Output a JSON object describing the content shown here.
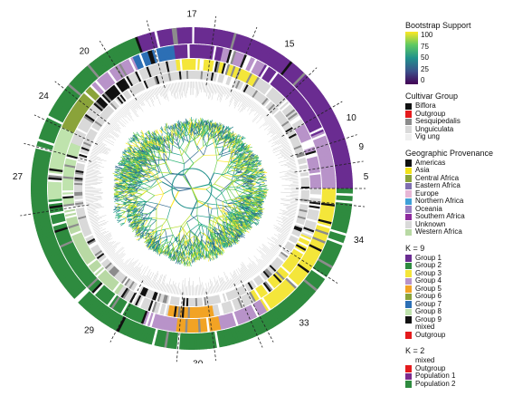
{
  "cluster_labels": [
    {
      "text": "17",
      "angle": -90
    },
    {
      "text": "15",
      "angle": -56
    },
    {
      "text": "10",
      "angle": -24
    },
    {
      "text": "9",
      "angle": -14
    },
    {
      "text": "5",
      "angle": -4
    },
    {
      "text": "34",
      "angle": 17
    },
    {
      "text": "33",
      "angle": 50
    },
    {
      "text": "30",
      "angle": 88
    },
    {
      "text": "29",
      "angle": 126
    },
    {
      "text": "27",
      "angle": 184
    },
    {
      "text": "24",
      "angle": 212
    },
    {
      "text": "20",
      "angle": 232
    }
  ],
  "legend": {
    "bootstrap": {
      "title": "Bootstrap Support",
      "ticks": [
        "100",
        "75",
        "50",
        "25",
        "0"
      ],
      "colors": [
        "#fde725",
        "#5ec962",
        "#21918c",
        "#3b528b",
        "#440154"
      ]
    },
    "cultivar": {
      "title": "Cultivar Group",
      "items": [
        {
          "label": "Biflora",
          "color": "#111111"
        },
        {
          "label": "Outgroup",
          "color": "#e41a1c"
        },
        {
          "label": "Sesquipedalis",
          "color": "#8c8c8c"
        },
        {
          "label": "Unguiculata",
          "color": "#d9d9d9"
        },
        {
          "label": "Vig ung",
          "color": "#efefef"
        }
      ]
    },
    "provenance": {
      "title": "Geographic Provenance",
      "items": [
        {
          "label": "Americas",
          "color": "#111111"
        },
        {
          "label": "Asia",
          "color": "#f2e21a"
        },
        {
          "label": "Central Africa",
          "color": "#8aa33a"
        },
        {
          "label": "Eastern Africa",
          "color": "#7f6fb0"
        },
        {
          "label": "Europe",
          "color": "#e7b7d6"
        },
        {
          "label": "Northern Africa",
          "color": "#3fa0d8"
        },
        {
          "label": "Oceania",
          "color": "#9a7fc2"
        },
        {
          "label": "Southern Africa",
          "color": "#8e2b9e"
        },
        {
          "label": "Unknown",
          "color": "#d9d9d9"
        },
        {
          "label": "Western Africa",
          "color": "#b8d9a4"
        }
      ]
    },
    "k9": {
      "title": "K = 9",
      "items": [
        {
          "label": "Group 1",
          "color": "#6a2c91"
        },
        {
          "label": "Group 2",
          "color": "#2e8b3f"
        },
        {
          "label": "Group 3",
          "color": "#f4e63a"
        },
        {
          "label": "Group 4",
          "color": "#b893c9"
        },
        {
          "label": "Group 5",
          "color": "#f2a324"
        },
        {
          "label": "Group 6",
          "color": "#8aa33a"
        },
        {
          "label": "Group 7",
          "color": "#2c6fb5"
        },
        {
          "label": "Group 8",
          "color": "#bfe3ad"
        },
        {
          "label": "Group 9",
          "color": "#111111"
        },
        {
          "label": "mixed",
          "color": ""
        },
        {
          "label": "Outgroup",
          "color": "#e41a1c"
        }
      ]
    },
    "k2": {
      "title": "K = 2",
      "items": [
        {
          "label": "mixed",
          "color": ""
        },
        {
          "label": "Outgroup",
          "color": "#e41a1c"
        },
        {
          "label": "Population 1",
          "color": "#7b2a8c"
        },
        {
          "label": "Population 2",
          "color": "#2e8b3f"
        }
      ]
    }
  }
}
